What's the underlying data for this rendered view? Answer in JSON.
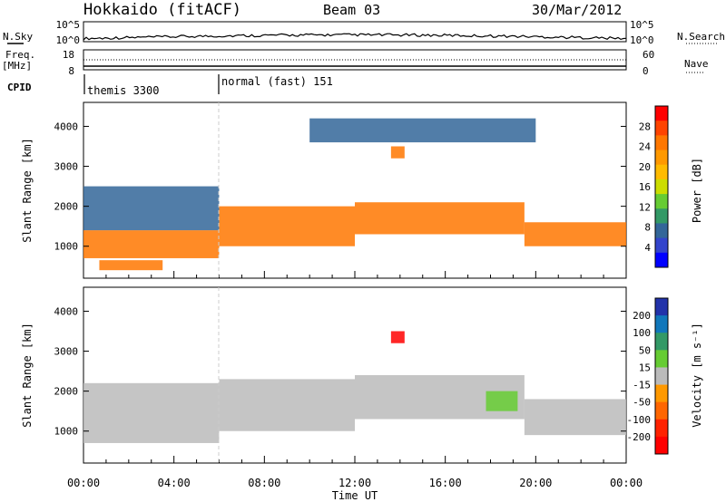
{
  "header": {
    "station": "Hokkaido (fitACF)",
    "beam": "Beam 03",
    "date": "30/Mar/2012"
  },
  "top_panels": {
    "nsky_label": "N.Sky",
    "nsky_ticks": [
      "10^5",
      "10^0"
    ],
    "nsearch_label": "N.Search",
    "nsearch_ticks": [
      "10^5",
      "10^0"
    ],
    "freq_label": "Freq.",
    "freq_unit": "[MHz]",
    "freq_ticks": [
      "18",
      "8"
    ],
    "nave_label": "Nave",
    "nave_ticks": [
      "60",
      "0"
    ],
    "cpid_label": "CPID",
    "cpid_modes": [
      {
        "name": "themis 3300",
        "start_hour": 0
      },
      {
        "name": "normal (fast) 151",
        "start_hour": 6
      }
    ]
  },
  "chart_data": [
    {
      "type": "heatmap",
      "panel": "power",
      "ylabel": "Slant Range [km]",
      "xlabel": "",
      "x_range_hours": [
        0,
        24
      ],
      "ylim": [
        200,
        4600
      ],
      "y_ticks": [
        1000,
        2000,
        3000,
        4000
      ],
      "colorbar": {
        "label": "Power [dB]",
        "ticks": [
          "28",
          "24",
          "20",
          "16",
          "12",
          "8",
          "4"
        ],
        "colors": [
          "#ff0000",
          "#ff4400",
          "#ff7700",
          "#ff9900",
          "#ffbb00",
          "#ccdd00",
          "#66cc33",
          "#339966",
          "#336699",
          "#3344cc",
          "#0000ff"
        ]
      },
      "regions": [
        {
          "x": [
            0.0,
            6.0
          ],
          "y": [
            700,
            1400
          ],
          "level": "strong"
        },
        {
          "x": [
            0.7,
            3.5
          ],
          "y": [
            400,
            650
          ],
          "level": "strong"
        },
        {
          "x": [
            0.0,
            6.0
          ],
          "y": [
            1400,
            2500
          ],
          "level": "weak"
        },
        {
          "x": [
            6.0,
            12.0
          ],
          "y": [
            1000,
            2000
          ],
          "level": "strong"
        },
        {
          "x": [
            12.0,
            19.5
          ],
          "y": [
            1300,
            2100
          ],
          "level": "strong"
        },
        {
          "x": [
            19.5,
            24.0
          ],
          "y": [
            1000,
            1600
          ],
          "level": "strong"
        },
        {
          "x": [
            13.6,
            14.2
          ],
          "y": [
            3200,
            3500
          ],
          "level": "strong"
        },
        {
          "x": [
            10.0,
            20.0
          ],
          "y": [
            3600,
            4200
          ],
          "level": "weak"
        }
      ]
    },
    {
      "type": "heatmap",
      "panel": "velocity",
      "ylabel": "Slant Range [km]",
      "xlabel": "Time UT",
      "x_range_hours": [
        0,
        24
      ],
      "x_ticks": [
        "00:00",
        "04:00",
        "08:00",
        "12:00",
        "16:00",
        "20:00",
        "00:00"
      ],
      "ylim": [
        200,
        4600
      ],
      "y_ticks": [
        1000,
        2000,
        3000,
        4000
      ],
      "colorbar": {
        "label": "Velocity [m s⁻¹]",
        "ticks": [
          "200",
          "100",
          "50",
          "15",
          "-15",
          "-50",
          "-100",
          "-200"
        ],
        "colors": [
          "#2233aa",
          "#1177bb",
          "#339966",
          "#66cc33",
          "#bbbbbb",
          "#ff9900",
          "#ff6600",
          "#ff2200",
          "#ff0000"
        ]
      },
      "regions": [
        {
          "x": [
            0.0,
            6.0
          ],
          "y": [
            700,
            2200
          ],
          "level": "ground"
        },
        {
          "x": [
            6.0,
            12.0
          ],
          "y": [
            1000,
            2300
          ],
          "level": "ground"
        },
        {
          "x": [
            12.0,
            19.5
          ],
          "y": [
            1300,
            2400
          ],
          "level": "ground"
        },
        {
          "x": [
            19.5,
            24.0
          ],
          "y": [
            900,
            1800
          ],
          "level": "ground"
        },
        {
          "x": [
            13.6,
            14.2
          ],
          "y": [
            3200,
            3500
          ],
          "level": "negative"
        },
        {
          "x": [
            17.8,
            19.2
          ],
          "y": [
            1500,
            2000
          ],
          "level": "positive"
        }
      ]
    }
  ],
  "colors": {
    "axis": "#000000",
    "ground_scatter": "#bbbbbb",
    "mode_line": "#cccccc"
  }
}
